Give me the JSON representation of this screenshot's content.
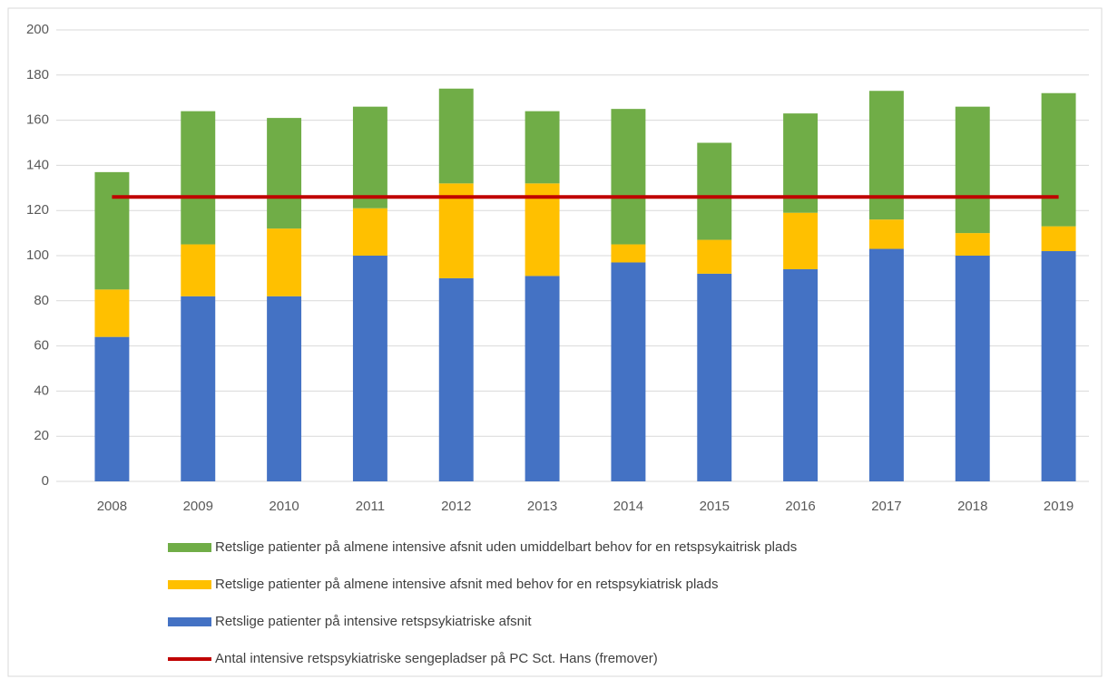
{
  "chart_data": {
    "type": "bar",
    "stacked": true,
    "categories": [
      "2008",
      "2009",
      "2010",
      "2011",
      "2012",
      "2013",
      "2014",
      "2015",
      "2016",
      "2017",
      "2018",
      "2019"
    ],
    "series": [
      {
        "name": "Retslige patienter på intensive retspsykiatriske afsnit",
        "color": "#4472c4",
        "values": [
          64,
          82,
          82,
          100,
          90,
          91,
          97,
          92,
          94,
          103,
          100,
          102
        ]
      },
      {
        "name": "Retslige patienter på almene intensive afsnit med behov for en retspsykiatrisk plads",
        "color": "#ffc000",
        "values": [
          21,
          23,
          30,
          21,
          42,
          41,
          8,
          15,
          25,
          13,
          10,
          11
        ]
      },
      {
        "name": "Retslige patienter på almene intensive afsnit uden umiddelbart behov for en retspsykaitrisk plads",
        "color": "#70ad47",
        "values": [
          52,
          59,
          49,
          45,
          42,
          32,
          60,
          43,
          44,
          57,
          56,
          59
        ]
      },
      {
        "name": "Antal intensive retspsykiatriske sengepladser på PC Sct. Hans (fremover)",
        "color": "#c00000",
        "type": "line",
        "values": [
          126,
          126,
          126,
          126,
          126,
          126,
          126,
          126,
          126,
          126,
          126,
          126
        ]
      }
    ],
    "ylim": [
      0,
      200
    ],
    "yticks": [
      0,
      20,
      40,
      60,
      80,
      100,
      120,
      140,
      160,
      180,
      200
    ],
    "grid": true,
    "legend": "bottom"
  }
}
